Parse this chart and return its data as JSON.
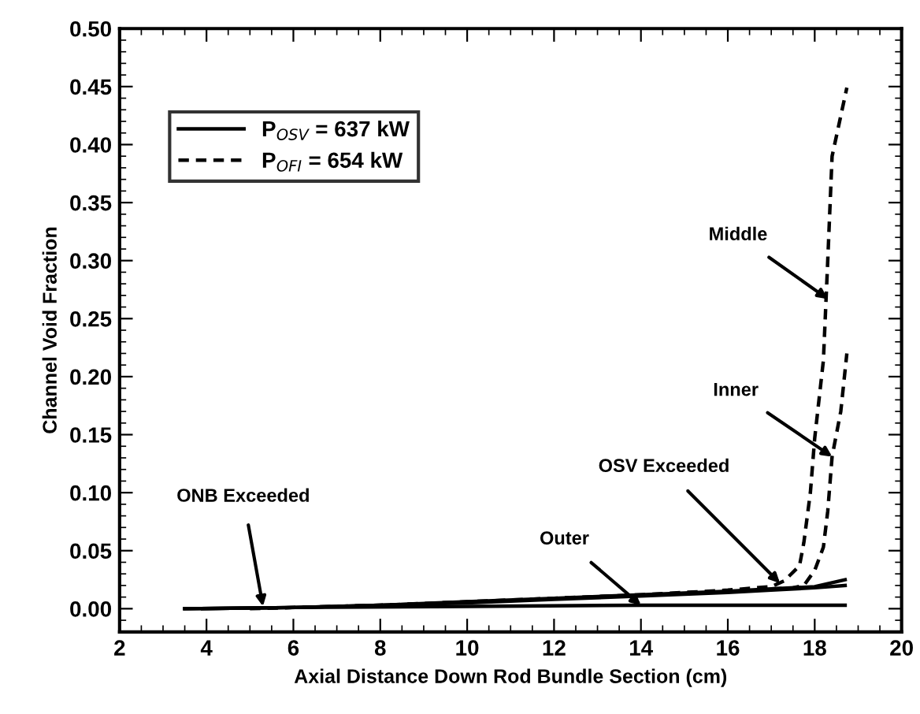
{
  "chart_data": {
    "type": "line",
    "xlabel": "Axial Distance Down Rod Bundle Section (cm)",
    "ylabel": "Channel Void Fraction",
    "xlim": [
      2,
      20
    ],
    "xticks": [
      2,
      4,
      6,
      8,
      10,
      12,
      14,
      16,
      18,
      20
    ],
    "ylim": [
      -0.02,
      0.5
    ],
    "yticks": [
      {
        "value": 0,
        "label": "0.00"
      },
      {
        "value": 0.05,
        "label": "0.05"
      },
      {
        "value": 0.1,
        "label": "0.10"
      },
      {
        "value": 0.15,
        "label": "0.15"
      },
      {
        "value": 0.2,
        "label": "0.20"
      },
      {
        "value": 0.25,
        "label": "0.25"
      },
      {
        "value": 0.3,
        "label": "0.30"
      },
      {
        "value": 0.35,
        "label": "0.35"
      },
      {
        "value": 0.4,
        "label": "0.40"
      },
      {
        "value": 0.45,
        "label": "0.45"
      },
      {
        "value": 0.5,
        "label": "0.50"
      }
    ],
    "grid": false,
    "legend": "top left",
    "marker": "none",
    "series": [
      {
        "name": "P$_{OSV}$ = 637 kW",
        "color": "#000000",
        "line_style": "solid",
        "x": [
          3.5,
          6,
          8,
          10,
          12,
          14,
          16,
          17,
          18,
          18.7
        ],
        "values": [
          0,
          0.001,
          0.003,
          0.006,
          0.009,
          0.012,
          0.015,
          0.017,
          0.019,
          0.025
        ]
      },
      {
        "color": "#000000",
        "line_style": "solid",
        "x": [
          3.5,
          6,
          8,
          10,
          12,
          14,
          16,
          17,
          18,
          18.7
        ],
        "values": [
          0,
          0.001,
          0.003,
          0.005,
          0.008,
          0.011,
          0.014,
          0.016,
          0.018,
          0.02
        ]
      },
      {
        "color": "#000000",
        "line_style": "solid",
        "x": [
          3.5,
          6,
          10,
          14,
          18.7
        ],
        "values": [
          0,
          0.001,
          0.002,
          0.003,
          0.003
        ]
      },
      {
        "name": "P$_{OFI}$ = 654 kW",
        "color": "#000000",
        "line_style": "dashed",
        "x": [
          5,
          8,
          10,
          12,
          14,
          16,
          17,
          17.3,
          17.65,
          17.75,
          17.9,
          18,
          18.2,
          18.3,
          18.4,
          18.74
        ],
        "values": [
          0,
          0.003,
          0.006,
          0.009,
          0.012,
          0.016,
          0.019,
          0.024,
          0.037,
          0.057,
          0.1,
          0.147,
          0.214,
          0.3,
          0.39,
          0.449
        ]
      },
      {
        "color": "#000000",
        "line_style": "dashed",
        "x": [
          17,
          17.5,
          17.75,
          18,
          18.2,
          18.3,
          18.4,
          18.6,
          18.74
        ],
        "values": [
          0.017,
          0.018,
          0.02,
          0.033,
          0.053,
          0.084,
          0.131,
          0.17,
          0.22
        ]
      }
    ],
    "annotations": [
      {
        "text": "Middle",
        "x": 18.3,
        "y": 0.267
      },
      {
        "text": "Inner",
        "x": 18.4,
        "y": 0.131
      },
      {
        "text": "OSV Exceeded",
        "x": 17.2,
        "y": 0.022
      },
      {
        "text": "Outer",
        "x": 14,
        "y": 0.003
      },
      {
        "text": "ONB Exceeded",
        "x": 5.3,
        "y": 0.002
      }
    ]
  }
}
